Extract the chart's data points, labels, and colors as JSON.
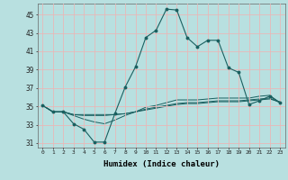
{
  "xlabel": "Humidex (Indice chaleur)",
  "background_color": "#b8e0e0",
  "grid_color": "#e8b8b8",
  "line_color": "#1a6060",
  "xlim": [
    -0.5,
    23.5
  ],
  "ylim": [
    30.5,
    46.2
  ],
  "yticks": [
    31,
    33,
    35,
    37,
    39,
    41,
    43,
    45
  ],
  "xticks": [
    0,
    1,
    2,
    3,
    4,
    5,
    6,
    7,
    8,
    9,
    10,
    11,
    12,
    13,
    14,
    15,
    16,
    17,
    18,
    19,
    20,
    21,
    22,
    23
  ],
  "main_line": [
    35.1,
    34.4,
    34.4,
    33.1,
    32.5,
    31.1,
    31.1,
    34.2,
    37.1,
    39.3,
    42.5,
    43.3,
    45.6,
    45.5,
    42.5,
    41.5,
    42.2,
    42.2,
    39.2,
    38.7,
    35.2,
    35.6,
    36.1,
    35.4
  ],
  "line2": [
    35.1,
    34.4,
    34.4,
    34.1,
    34.1,
    34.1,
    34.1,
    34.1,
    34.2,
    34.4,
    34.6,
    34.8,
    35.0,
    35.2,
    35.3,
    35.3,
    35.4,
    35.5,
    35.5,
    35.5,
    35.6,
    35.7,
    35.8,
    35.5
  ],
  "line3": [
    35.1,
    34.4,
    34.4,
    34.1,
    34.0,
    34.0,
    34.0,
    34.1,
    34.2,
    34.4,
    34.7,
    34.9,
    35.1,
    35.3,
    35.4,
    35.4,
    35.5,
    35.6,
    35.6,
    35.6,
    35.7,
    35.8,
    35.9,
    35.4
  ],
  "line4": [
    35.1,
    34.4,
    34.4,
    34.0,
    33.6,
    33.3,
    33.1,
    33.5,
    34.0,
    34.4,
    34.9,
    35.1,
    35.4,
    35.7,
    35.7,
    35.7,
    35.8,
    35.9,
    35.9,
    35.9,
    35.9,
    36.1,
    36.2,
    35.4
  ]
}
